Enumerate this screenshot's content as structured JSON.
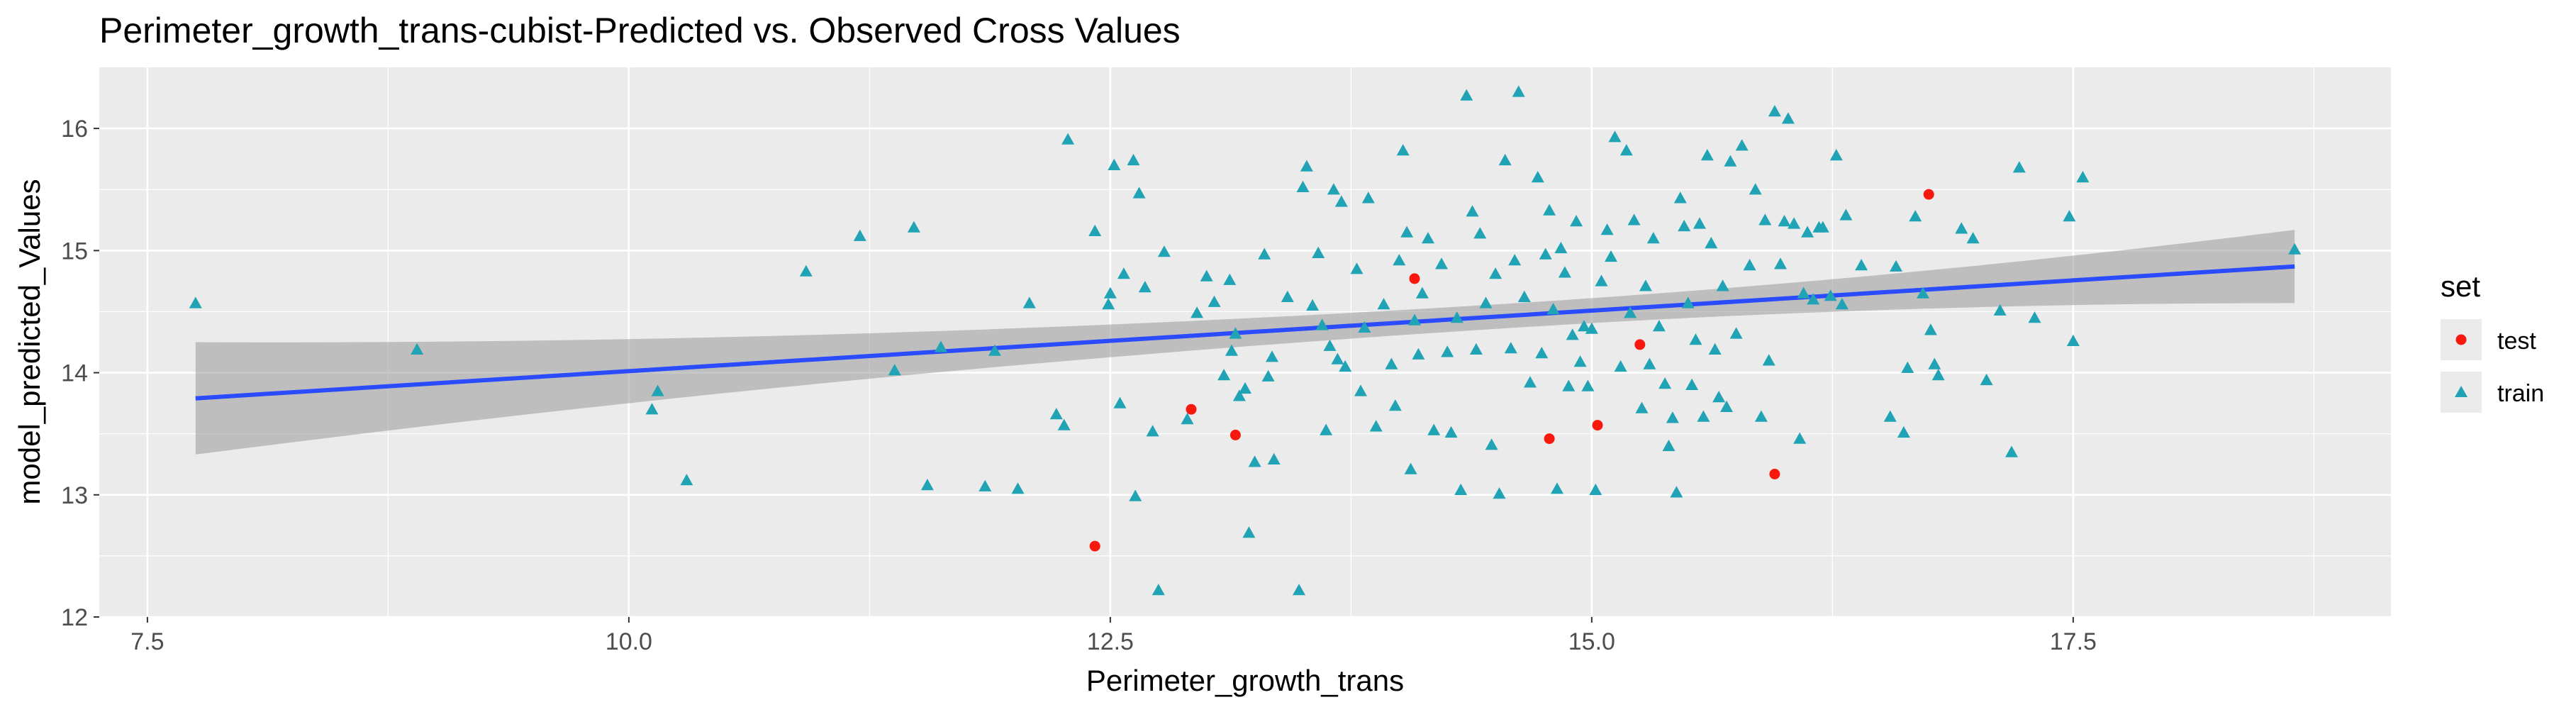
{
  "chart_data": {
    "type": "scatter",
    "title": "Perimeter_growth_trans-cubist-Predicted vs. Observed Cross Values",
    "xlabel": "Perimeter_growth_trans",
    "ylabel": "model_predicted_Values",
    "xlim": [
      7.25,
      19.15
    ],
    "ylim": [
      12,
      16.5
    ],
    "x_ticks": [
      7.5,
      10.0,
      12.5,
      15.0,
      17.5
    ],
    "x_tick_labels": [
      "7.5",
      "10.0",
      "12.5",
      "15.0",
      "17.5"
    ],
    "y_ticks": [
      12,
      13,
      14,
      15,
      16
    ],
    "y_tick_labels": [
      "12",
      "13",
      "14",
      "15",
      "16"
    ],
    "grid": true,
    "legend": {
      "title": "set",
      "position": "right",
      "entries": [
        {
          "label": "test",
          "shape": "circle",
          "color": "#F8180D"
        },
        {
          "label": "train",
          "shape": "triangle",
          "color": "#1FA3B5"
        }
      ]
    },
    "trend_line": {
      "method": "linear",
      "color": "#2B4BFF",
      "x": [
        7.75,
        18.65
      ],
      "y": [
        13.79,
        14.87
      ],
      "ci_lower": [
        13.33,
        14.57
      ],
      "ci_upper": [
        14.25,
        15.17
      ],
      "ci_mid_x": 14.6,
      "ci_mid_lower": 14.38,
      "ci_mid_upper": 14.58
    },
    "series": [
      {
        "name": "test",
        "shape": "circle",
        "color": "#F8180D",
        "points": [
          [
            12.42,
            12.58
          ],
          [
            12.92,
            13.7
          ],
          [
            13.15,
            13.49
          ],
          [
            14.08,
            14.77
          ],
          [
            14.78,
            13.46
          ],
          [
            15.03,
            13.57
          ],
          [
            15.25,
            14.23
          ],
          [
            15.95,
            13.17
          ],
          [
            16.75,
            15.46
          ]
        ]
      },
      {
        "name": "train",
        "shape": "triangle",
        "color": "#1FA3B5",
        "points": [
          [
            7.75,
            14.57
          ],
          [
            8.9,
            14.19
          ],
          [
            10.12,
            13.7
          ],
          [
            10.15,
            13.85
          ],
          [
            10.3,
            13.12
          ],
          [
            10.92,
            14.83
          ],
          [
            11.2,
            15.12
          ],
          [
            11.38,
            14.02
          ],
          [
            11.48,
            15.19
          ],
          [
            11.55,
            13.08
          ],
          [
            11.62,
            14.21
          ],
          [
            11.85,
            13.07
          ],
          [
            11.9,
            14.18
          ],
          [
            12.02,
            13.05
          ],
          [
            12.08,
            14.57
          ],
          [
            12.22,
            13.66
          ],
          [
            12.26,
            13.57
          ],
          [
            12.28,
            15.91
          ],
          [
            12.42,
            15.16
          ],
          [
            12.49,
            14.56
          ],
          [
            12.5,
            14.65
          ],
          [
            12.52,
            15.7
          ],
          [
            12.55,
            13.75
          ],
          [
            12.57,
            14.81
          ],
          [
            12.62,
            15.74
          ],
          [
            12.63,
            12.99
          ],
          [
            12.65,
            15.47
          ],
          [
            12.68,
            14.7
          ],
          [
            12.72,
            13.52
          ],
          [
            12.75,
            12.22
          ],
          [
            12.78,
            14.99
          ],
          [
            12.9,
            13.62
          ],
          [
            12.95,
            14.49
          ],
          [
            13.0,
            14.79
          ],
          [
            13.04,
            14.58
          ],
          [
            13.09,
            13.98
          ],
          [
            13.12,
            14.76
          ],
          [
            13.13,
            14.18
          ],
          [
            13.15,
            14.32
          ],
          [
            13.17,
            13.81
          ],
          [
            13.2,
            13.87
          ],
          [
            13.22,
            12.69
          ],
          [
            13.25,
            13.27
          ],
          [
            13.3,
            14.97
          ],
          [
            13.32,
            13.97
          ],
          [
            13.34,
            14.13
          ],
          [
            13.35,
            13.29
          ],
          [
            13.42,
            14.62
          ],
          [
            13.48,
            12.22
          ],
          [
            13.5,
            15.52
          ],
          [
            13.52,
            15.69
          ],
          [
            13.55,
            14.55
          ],
          [
            13.58,
            14.98
          ],
          [
            13.6,
            14.39
          ],
          [
            13.62,
            13.53
          ],
          [
            13.64,
            14.22
          ],
          [
            13.66,
            15.5
          ],
          [
            13.68,
            14.11
          ],
          [
            13.7,
            15.4
          ],
          [
            13.72,
            14.05
          ],
          [
            13.78,
            14.85
          ],
          [
            13.8,
            13.85
          ],
          [
            13.82,
            14.37
          ],
          [
            13.84,
            15.43
          ],
          [
            13.88,
            13.56
          ],
          [
            13.92,
            14.56
          ],
          [
            13.96,
            14.07
          ],
          [
            13.98,
            13.73
          ],
          [
            14.0,
            14.92
          ],
          [
            14.02,
            15.82
          ],
          [
            14.04,
            15.15
          ],
          [
            14.06,
            13.21
          ],
          [
            14.08,
            14.43
          ],
          [
            14.1,
            14.15
          ],
          [
            14.12,
            14.65
          ],
          [
            14.15,
            15.1
          ],
          [
            14.18,
            13.53
          ],
          [
            14.22,
            14.89
          ],
          [
            14.25,
            14.17
          ],
          [
            14.27,
            13.51
          ],
          [
            14.3,
            14.45
          ],
          [
            14.32,
            13.04
          ],
          [
            14.35,
            16.27
          ],
          [
            14.38,
            15.32
          ],
          [
            14.4,
            14.19
          ],
          [
            14.42,
            15.14
          ],
          [
            14.45,
            14.57
          ],
          [
            14.48,
            13.41
          ],
          [
            14.5,
            14.81
          ],
          [
            14.52,
            13.01
          ],
          [
            14.55,
            15.74
          ],
          [
            14.58,
            14.2
          ],
          [
            14.6,
            14.92
          ],
          [
            14.62,
            16.3
          ],
          [
            14.65,
            14.62
          ],
          [
            14.68,
            13.92
          ],
          [
            14.72,
            15.6
          ],
          [
            14.74,
            14.16
          ],
          [
            14.76,
            14.97
          ],
          [
            14.78,
            15.33
          ],
          [
            14.8,
            14.52
          ],
          [
            14.82,
            13.05
          ],
          [
            14.84,
            15.02
          ],
          [
            14.86,
            14.82
          ],
          [
            14.88,
            13.89
          ],
          [
            14.9,
            14.31
          ],
          [
            14.92,
            15.24
          ],
          [
            14.94,
            14.09
          ],
          [
            14.96,
            14.38
          ],
          [
            14.98,
            13.89
          ],
          [
            15.0,
            14.36
          ],
          [
            15.02,
            13.04
          ],
          [
            15.05,
            14.75
          ],
          [
            15.08,
            15.17
          ],
          [
            15.1,
            14.95
          ],
          [
            15.12,
            15.93
          ],
          [
            15.15,
            14.05
          ],
          [
            15.18,
            15.82
          ],
          [
            15.2,
            14.49
          ],
          [
            15.22,
            15.25
          ],
          [
            15.26,
            13.71
          ],
          [
            15.28,
            14.71
          ],
          [
            15.3,
            14.07
          ],
          [
            15.32,
            15.1
          ],
          [
            15.35,
            14.38
          ],
          [
            15.38,
            13.91
          ],
          [
            15.4,
            13.4
          ],
          [
            15.42,
            13.63
          ],
          [
            15.44,
            13.02
          ],
          [
            15.46,
            15.43
          ],
          [
            15.48,
            15.2
          ],
          [
            15.5,
            14.57
          ],
          [
            15.52,
            13.9
          ],
          [
            15.54,
            14.27
          ],
          [
            15.56,
            15.22
          ],
          [
            15.58,
            13.64
          ],
          [
            15.6,
            15.78
          ],
          [
            15.62,
            15.06
          ],
          [
            15.64,
            14.19
          ],
          [
            15.66,
            13.8
          ],
          [
            15.68,
            14.71
          ],
          [
            15.7,
            13.72
          ],
          [
            15.72,
            15.73
          ],
          [
            15.75,
            14.32
          ],
          [
            15.78,
            15.86
          ],
          [
            15.82,
            14.88
          ],
          [
            15.85,
            15.5
          ],
          [
            15.88,
            13.64
          ],
          [
            15.9,
            15.25
          ],
          [
            15.92,
            14.1
          ],
          [
            15.95,
            16.14
          ],
          [
            15.98,
            14.89
          ],
          [
            16.0,
            15.24
          ],
          [
            16.02,
            16.08
          ],
          [
            16.05,
            15.22
          ],
          [
            16.08,
            13.46
          ],
          [
            16.1,
            14.65
          ],
          [
            16.12,
            15.15
          ],
          [
            16.15,
            14.6
          ],
          [
            16.18,
            15.19
          ],
          [
            16.2,
            15.19
          ],
          [
            16.24,
            14.63
          ],
          [
            16.27,
            15.78
          ],
          [
            16.3,
            14.56
          ],
          [
            16.32,
            15.29
          ],
          [
            16.4,
            14.88
          ],
          [
            16.55,
            13.64
          ],
          [
            16.58,
            14.87
          ],
          [
            16.62,
            13.51
          ],
          [
            16.64,
            14.04
          ],
          [
            16.68,
            15.28
          ],
          [
            16.72,
            14.65
          ],
          [
            16.76,
            14.35
          ],
          [
            16.78,
            14.07
          ],
          [
            16.8,
            13.98
          ],
          [
            16.92,
            15.18
          ],
          [
            16.98,
            15.1
          ],
          [
            17.05,
            13.94
          ],
          [
            17.12,
            14.51
          ],
          [
            17.18,
            13.35
          ],
          [
            17.22,
            15.68
          ],
          [
            17.3,
            14.45
          ],
          [
            17.48,
            15.28
          ],
          [
            17.5,
            14.26
          ],
          [
            17.55,
            15.6
          ],
          [
            18.65,
            15.01
          ]
        ]
      }
    ]
  }
}
